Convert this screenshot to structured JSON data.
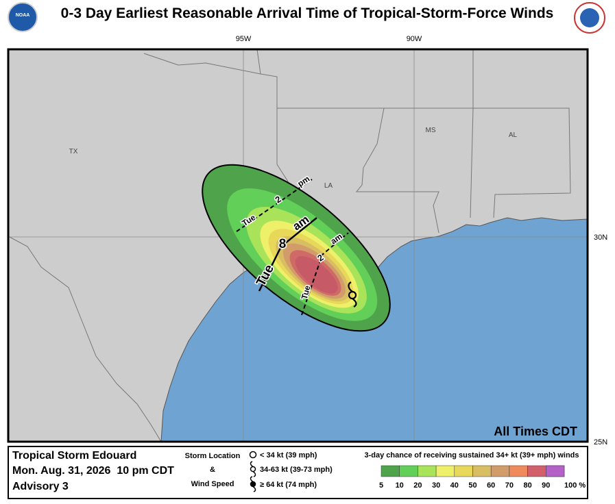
{
  "header": {
    "title": "0-3 Day Earliest Reasonable Arrival Time of Tropical-Storm-Force Winds",
    "noaa_logo": "NOAA"
  },
  "map": {
    "longitude_labels": [
      "95W",
      "90W"
    ],
    "latitude_labels": [
      "30N",
      "25N"
    ],
    "state_labels": [
      "TX",
      "LA",
      "MS",
      "AL"
    ],
    "arrival_labels": [
      {
        "day": "Tue",
        "hour": "2",
        "period": "pm"
      },
      {
        "day": "Tue",
        "hour": "8",
        "period": "am"
      },
      {
        "day": "Tue",
        "hour": "2",
        "period": "am"
      }
    ],
    "note": "All Times CDT"
  },
  "legend": {
    "storm_name": "Tropical Storm Edouard",
    "date": "Mon. Aug. 31, 2026  10 pm CDT",
    "advisory": "Advisory 3",
    "storm_location": "Storm Location",
    "ampersand": "&",
    "wind_speed": "Wind Speed",
    "symbols": [
      "< 34 kt (39 mph)",
      "34-63 kt (39-73 mph)",
      "≥ 64 kt (74 mph)"
    ],
    "probability_title": "3-day chance of receiving sustained 34+ kt (39+ mph) winds",
    "scale": [
      {
        "label": "5",
        "color": "#4fa34a"
      },
      {
        "label": "10",
        "color": "#62cf58"
      },
      {
        "label": "20",
        "color": "#a9e35a"
      },
      {
        "label": "30",
        "color": "#eef06a"
      },
      {
        "label": "40",
        "color": "#e8d85a"
      },
      {
        "label": "50",
        "color": "#d9bd62"
      },
      {
        "label": "60",
        "color": "#d29c6a"
      },
      {
        "label": "70",
        "color": "#ee8a5c"
      },
      {
        "label": "80",
        "color": "#d2606a"
      },
      {
        "label": "90",
        "color": "#a85462"
      },
      {
        "label": "100 %",
        "color": "#b462c8"
      }
    ]
  }
}
